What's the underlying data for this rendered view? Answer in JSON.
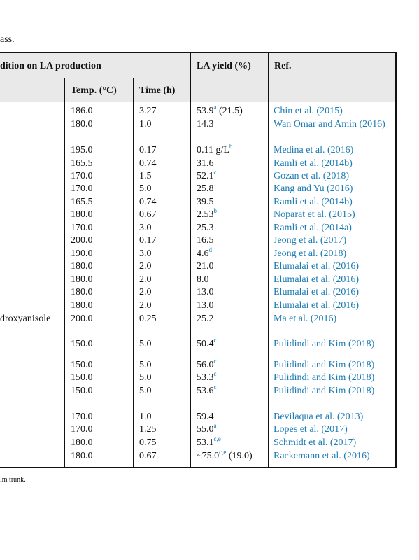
{
  "caption_fragment": "ass.",
  "header": {
    "group": "dition on LA production",
    "yield": "LA yield (%)",
    "ref": "Ref.",
    "temp": "Temp. (°C)",
    "time": "Time (h)"
  },
  "rows": [
    {
      "temp": "186.0",
      "time": "3.27",
      "yield": "53.9",
      "yield_note": "a",
      "yield_extra": "(21.5)",
      "ref": "Chin et al. (2015)"
    },
    {
      "temp": "180.0",
      "time": "1.0",
      "yield": "14.3",
      "ref": "Wan Omar and Amin (2016)"
    },
    {
      "temp": "195.0",
      "time": "0.17",
      "yield": "0.11 g/L",
      "yield_note": "b",
      "ref": "Medina et al. (2016)"
    },
    {
      "temp": "165.5",
      "time": "0.74",
      "yield": "31.6",
      "ref": "Ramli et al. (2014b)"
    },
    {
      "temp": "170.0",
      "time": "1.5",
      "yield": "52.1",
      "yield_note": "c",
      "ref": "Gozan et al. (2018)"
    },
    {
      "temp": "170.0",
      "time": "5.0",
      "yield": "25.8",
      "ref": "Kang and Yu (2016)"
    },
    {
      "temp": "165.5",
      "time": "0.74",
      "yield": "39.5",
      "ref": "Ramli et al. (2014b)"
    },
    {
      "temp": "180.0",
      "time": "0.67",
      "yield": "2.53",
      "yield_note": "b",
      "ref": "Noparat et al. (2015)"
    },
    {
      "temp": "170.0",
      "time": "3.0",
      "yield": "25.3",
      "ref": "Ramli et al. (2014a)"
    },
    {
      "temp": "200.0",
      "time": "0.17",
      "yield": "16.5",
      "ref": "Jeong et al. (2017)"
    },
    {
      "temp": "190.0",
      "time": "3.0",
      "yield": "4.6",
      "yield_note": "d",
      "ref": "Jeong et al. (2018)"
    },
    {
      "temp": "180.0",
      "time": "2.0",
      "yield": "21.0",
      "ref": "Elumalai et al. (2016)"
    },
    {
      "temp": "180.0",
      "time": "2.0",
      "yield": "8.0",
      "ref": "Elumalai et al. (2016)"
    },
    {
      "temp": "180.0",
      "time": "2.0",
      "yield": "13.0",
      "ref": "Elumalai et al. (2016)"
    },
    {
      "temp": "180.0",
      "time": "2.0",
      "yield": "13.0",
      "ref": "Elumalai et al. (2016)"
    },
    {
      "condition": "droxyanisole",
      "temp": "200.0",
      "time": "0.25",
      "yield": "25.2",
      "ref": "Ma et al. (2016)"
    },
    {
      "temp": "150.0",
      "time": "5.0",
      "yield": "50.4",
      "yield_note": "c",
      "ref": "Pulidindi and Kim (2018)"
    },
    {
      "temp": "150.0",
      "time": "5.0",
      "yield": "56.0",
      "yield_note": "c",
      "ref": "Pulidindi and Kim (2018)"
    },
    {
      "temp": "150.0",
      "time": "5.0",
      "yield": "53.3",
      "yield_note": "c",
      "ref": "Pulidindi and Kim (2018)"
    },
    {
      "temp": "150.0",
      "time": "5.0",
      "yield": "53.6",
      "yield_note": "c",
      "ref": "Pulidindi and Kim (2018)"
    },
    {
      "temp": "170.0",
      "time": "1.0",
      "yield": "59.4",
      "ref": "Bevilaqua et al. (2013)"
    },
    {
      "temp": "170.0",
      "time": "1.25",
      "yield": "55.0",
      "yield_note": "a",
      "ref": "Lopes et al. (2017)"
    },
    {
      "temp": "180.0",
      "time": "0.75",
      "yield": "53.1",
      "yield_note": "c,e",
      "ref": "Schmidt et al. (2017)"
    },
    {
      "temp": "180.0",
      "time": "0.67",
      "yield": "~75.0",
      "yield_note": "c,e",
      "yield_extra": "(19.0)",
      "ref": "Rackemann et al. (2016)"
    }
  ],
  "footnote_fragment": "lm trunk."
}
